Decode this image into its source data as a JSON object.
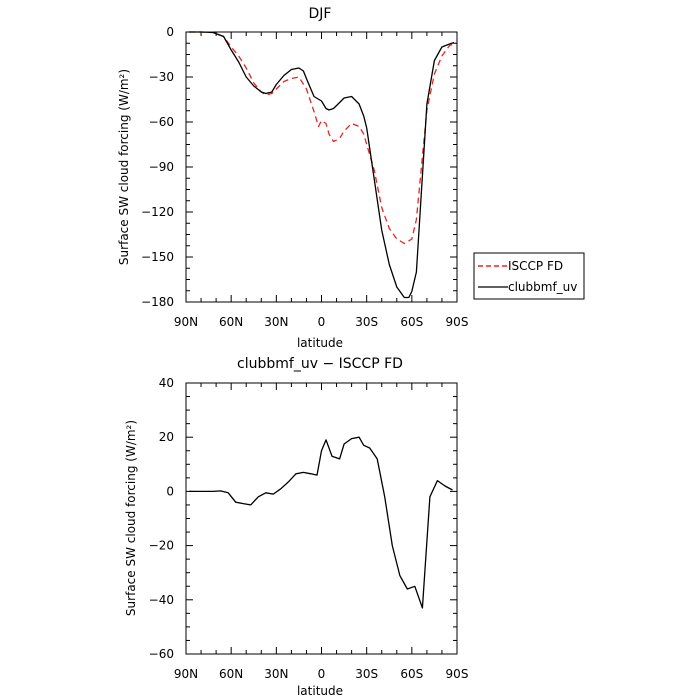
{
  "chart_data": [
    {
      "type": "line",
      "title": "DJF",
      "xlabel": "latitude",
      "ylabel": "Surface SW cloud forcing (W/m²)",
      "xlim": [
        90,
        -90
      ],
      "ylim": [
        -180,
        0
      ],
      "xticks": [
        90,
        60,
        30,
        0,
        -30,
        -60,
        -90
      ],
      "xtick_labels": [
        "90N",
        "60N",
        "30N",
        "0",
        "30S",
        "60S",
        "90S"
      ],
      "yticks": [
        0,
        -30,
        -60,
        -90,
        -120,
        -150,
        -180
      ],
      "ytick_labels": [
        "0",
        "−30",
        "−60",
        "−90",
        "−120",
        "−150",
        "−180"
      ],
      "legend_position": "right",
      "series": [
        {
          "name": "ISCCP FD",
          "color": "#e8251f",
          "dash": "dashed",
          "x": [
            88,
            80,
            72,
            65,
            60,
            55,
            50,
            45,
            40,
            37,
            33,
            30,
            25,
            20,
            15,
            10,
            5,
            2,
            0,
            -3,
            -5,
            -8,
            -12,
            -15,
            -20,
            -25,
            -28,
            -30,
            -35,
            -40,
            -45,
            -50,
            -55,
            -60,
            -63,
            -65,
            -70,
            -75,
            -80,
            -85,
            -88
          ],
          "y": [
            0,
            0,
            -0.3,
            -3,
            -10,
            -16,
            -24,
            -34,
            -40,
            -42,
            -41,
            -38,
            -33,
            -31,
            -30,
            -38,
            -53,
            -63,
            -59,
            -61,
            -68,
            -73,
            -71,
            -66,
            -61,
            -63,
            -68,
            -75,
            -92,
            -117,
            -131,
            -138,
            -141,
            -138,
            -125,
            -104,
            -52,
            -28,
            -16,
            -9,
            -8
          ]
        },
        {
          "name": "clubbmf_uv",
          "color": "#000000",
          "dash": "solid",
          "x": [
            88,
            80,
            72,
            65,
            60,
            55,
            50,
            45,
            40,
            37,
            33,
            30,
            25,
            20,
            15,
            12,
            10,
            5,
            0,
            -3,
            -5,
            -8,
            -10,
            -15,
            -20,
            -25,
            -28,
            -30,
            -35,
            -40,
            -45,
            -50,
            -55,
            -58,
            -60,
            -63,
            -65,
            -70,
            -75,
            -80,
            -85,
            -88
          ],
          "y": [
            0,
            0,
            -0.3,
            -3,
            -12,
            -20,
            -30,
            -36,
            -40,
            -41,
            -40,
            -35,
            -29,
            -25,
            -24,
            -26,
            -31,
            -43,
            -46,
            -51,
            -52,
            -51,
            -49,
            -44,
            -43,
            -48,
            -56,
            -64,
            -98,
            -132,
            -155,
            -170,
            -177,
            -177,
            -173,
            -160,
            -128,
            -48,
            -19,
            -10,
            -8,
            -7
          ]
        }
      ]
    },
    {
      "type": "line",
      "title": "clubbmf_uv − ISCCP FD",
      "xlabel": "latitude",
      "ylabel": "Surface SW cloud forcing (W/m²)",
      "xlim": [
        90,
        -90
      ],
      "ylim": [
        -60,
        40
      ],
      "xticks": [
        90,
        60,
        30,
        0,
        -30,
        -60,
        -90
      ],
      "xtick_labels": [
        "90N",
        "60N",
        "30N",
        "0",
        "30S",
        "60S",
        "90S"
      ],
      "yticks": [
        40,
        20,
        0,
        -20,
        -40,
        -60
      ],
      "ytick_labels": [
        "40",
        "20",
        "0",
        "−20",
        "−40",
        "−60"
      ],
      "series": [
        {
          "name": "",
          "color": "#000000",
          "dash": "solid",
          "x": [
            88,
            80,
            72,
            67,
            62,
            57,
            52,
            47,
            42,
            37,
            32,
            27,
            22,
            17,
            12,
            7,
            3,
            0,
            -3,
            -7,
            -12,
            -15,
            -20,
            -25,
            -28,
            -32,
            -37,
            -42,
            -47,
            -52,
            -57,
            -62,
            -67,
            -72,
            -77,
            -82,
            -87
          ],
          "y": [
            0,
            0,
            0,
            0.2,
            -0.5,
            -4,
            -4.5,
            -5,
            -2,
            -0.5,
            -1,
            1,
            3.5,
            6.5,
            7,
            6.5,
            6,
            15,
            19,
            13,
            12,
            17.5,
            19.5,
            20,
            17,
            16,
            12,
            -2,
            -20,
            -31,
            -36,
            -35,
            -43,
            -2,
            4,
            2,
            0.5
          ]
        }
      ]
    }
  ]
}
